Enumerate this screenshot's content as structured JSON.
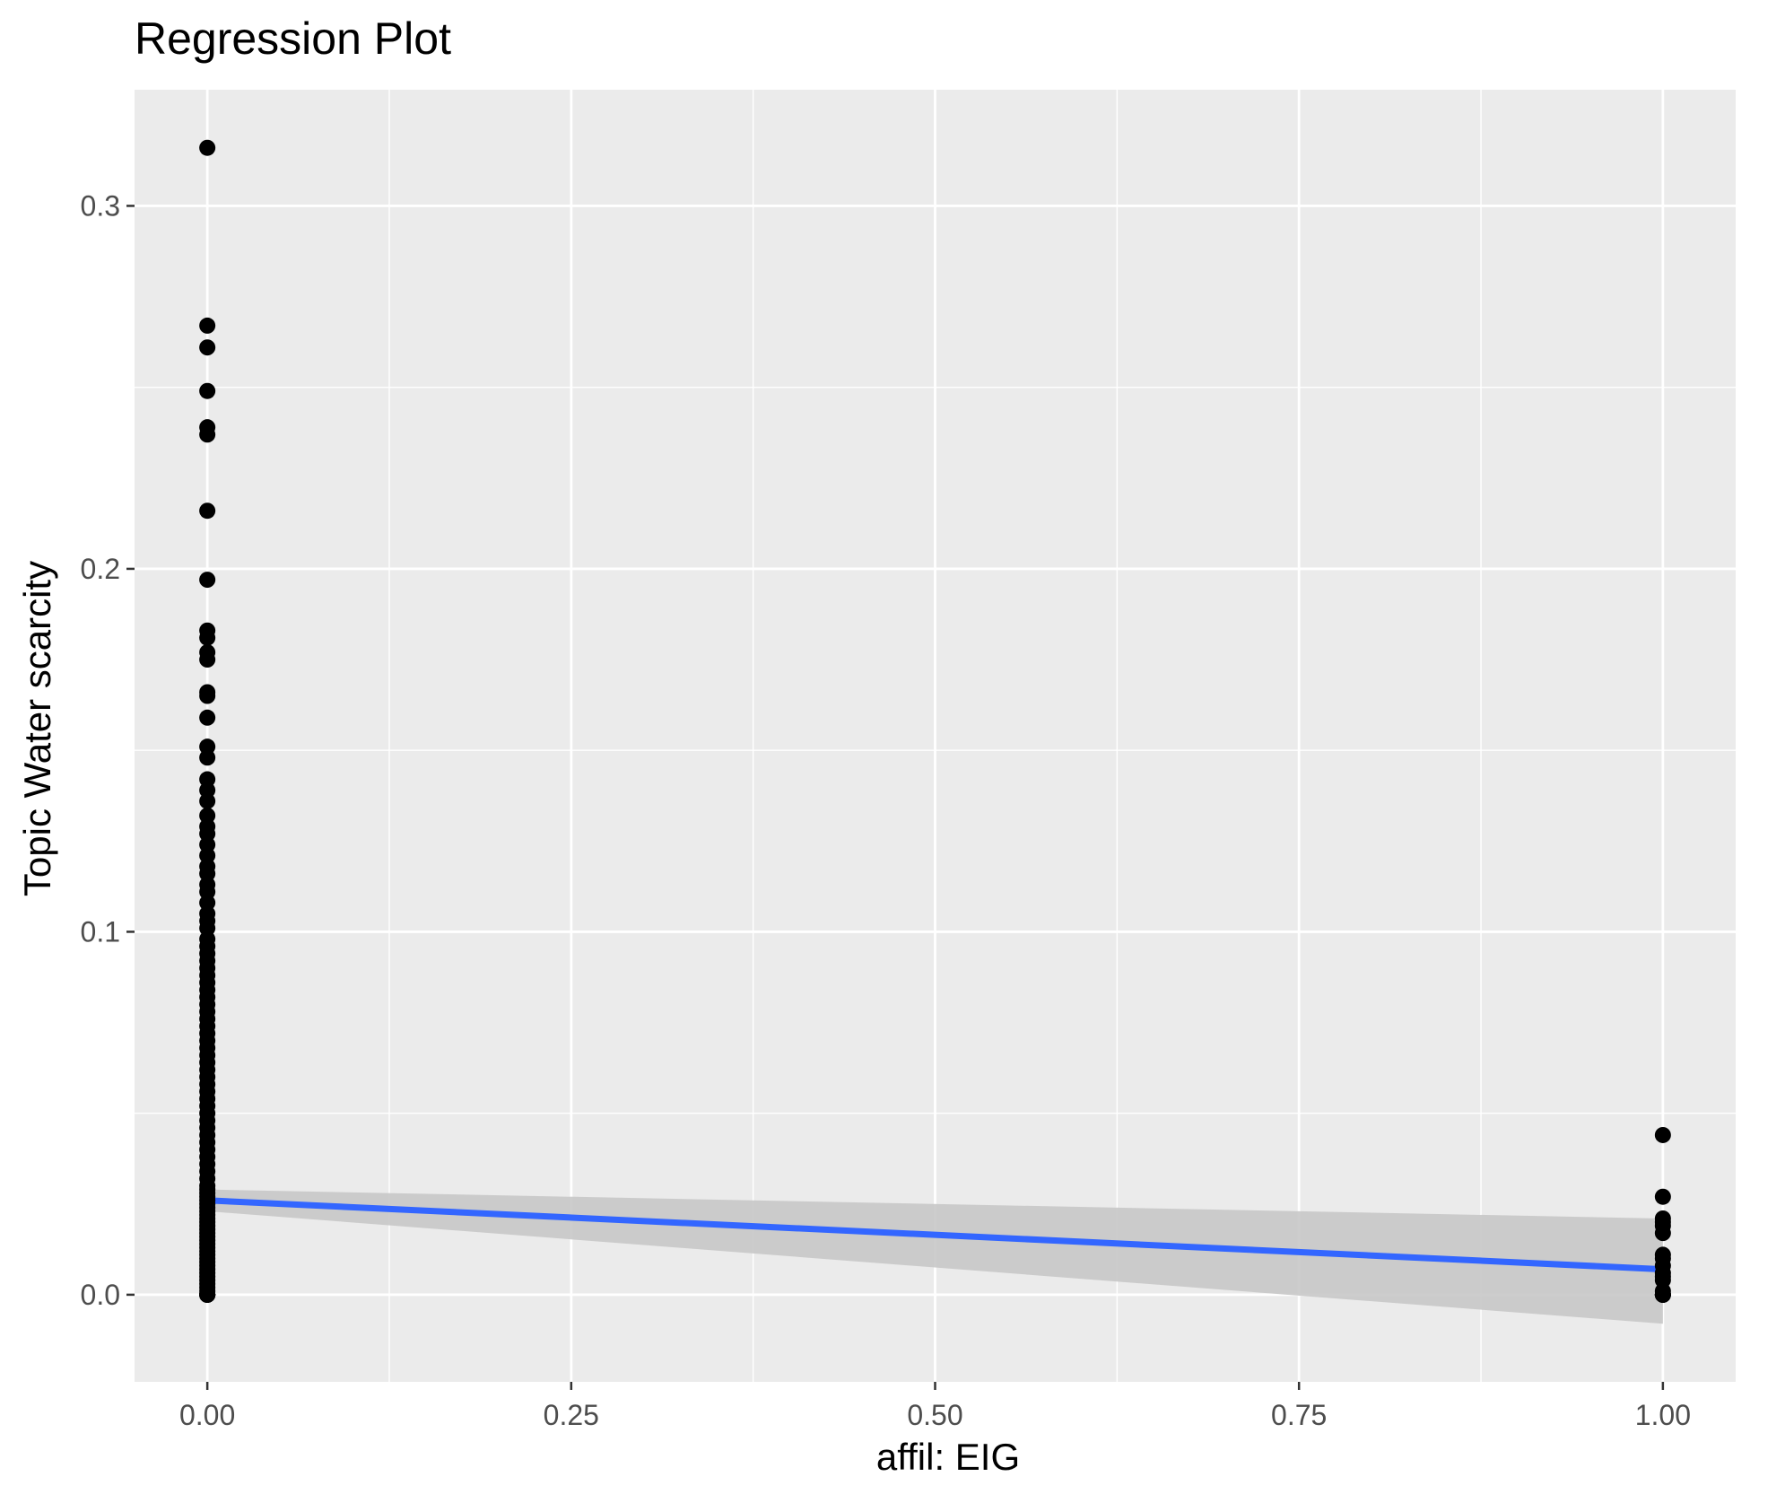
{
  "chart_data": {
    "type": "scatter",
    "title": "Regression Plot",
    "xlabel": "affil: EIG",
    "ylabel": "Topic Water scarcity",
    "xlim": [
      -0.05,
      1.05
    ],
    "ylim": [
      -0.024,
      0.332
    ],
    "x_ticks": [
      {
        "value": 0.0,
        "label": "0.00"
      },
      {
        "value": 0.25,
        "label": "0.25"
      },
      {
        "value": 0.5,
        "label": "0.50"
      },
      {
        "value": 0.75,
        "label": "0.75"
      },
      {
        "value": 1.0,
        "label": "1.00"
      }
    ],
    "y_ticks": [
      {
        "value": 0.0,
        "label": "0.0"
      },
      {
        "value": 0.1,
        "label": "0.1"
      },
      {
        "value": 0.2,
        "label": "0.2"
      },
      {
        "value": 0.3,
        "label": "0.3"
      }
    ],
    "grid": true,
    "legend": "none",
    "colors": {
      "panel": "#ebebeb",
      "grid": "#ffffff",
      "points": "#000000",
      "fit_line": "#3366ff",
      "ribbon": "#c8c8c8",
      "tick_label": "#4d4d4d",
      "tick_mark": "#333333"
    },
    "series": [
      {
        "kind": "points",
        "x": [
          0,
          0,
          0,
          0,
          0,
          0,
          0,
          0,
          0,
          0,
          0,
          0,
          0,
          0,
          0,
          0,
          0,
          0,
          0,
          0,
          0,
          0,
          0,
          0,
          0,
          0,
          0,
          0,
          0,
          0,
          0,
          0,
          0,
          0,
          0,
          0,
          0,
          0,
          0,
          0,
          0,
          0,
          0,
          0,
          0,
          0,
          0,
          0,
          0,
          0,
          0,
          0,
          0,
          0,
          0,
          0,
          0,
          0,
          0,
          0,
          0,
          0,
          0,
          0,
          0,
          0,
          0,
          0,
          0,
          0,
          0,
          0,
          0,
          0,
          0,
          0,
          0,
          0,
          0,
          0,
          0,
          0,
          0,
          0,
          0,
          0,
          0,
          0,
          0,
          0,
          0,
          0,
          0,
          0,
          0,
          0,
          0,
          0,
          0,
          0,
          0,
          0,
          0,
          0,
          0,
          0,
          1,
          1,
          1,
          1,
          1,
          1,
          1,
          1,
          1,
          1,
          1,
          1,
          1,
          1,
          1,
          1,
          1,
          1
        ],
        "y": [
          0.316,
          0.267,
          0.261,
          0.249,
          0.239,
          0.237,
          0.216,
          0.197,
          0.183,
          0.181,
          0.177,
          0.175,
          0.166,
          0.165,
          0.159,
          0.151,
          0.148,
          0.142,
          0.139,
          0.136,
          0.132,
          0.129,
          0.127,
          0.124,
          0.121,
          0.118,
          0.116,
          0.113,
          0.111,
          0.108,
          0.105,
          0.103,
          0.101,
          0.098,
          0.096,
          0.094,
          0.092,
          0.09,
          0.088,
          0.086,
          0.084,
          0.082,
          0.08,
          0.078,
          0.076,
          0.074,
          0.072,
          0.07,
          0.068,
          0.066,
          0.064,
          0.062,
          0.06,
          0.058,
          0.056,
          0.054,
          0.052,
          0.05,
          0.048,
          0.046,
          0.044,
          0.042,
          0.04,
          0.038,
          0.036,
          0.034,
          0.032,
          0.03,
          0.029,
          0.028,
          0.027,
          0.026,
          0.025,
          0.024,
          0.023,
          0.022,
          0.021,
          0.02,
          0.019,
          0.018,
          0.017,
          0.016,
          0.015,
          0.014,
          0.013,
          0.012,
          0.011,
          0.01,
          0.009,
          0.008,
          0.007,
          0.006,
          0.005,
          0.004,
          0.003,
          0.002,
          0.001,
          0.0,
          0.0,
          0.0,
          0.0,
          0.0,
          0.0,
          0.0,
          0.0,
          0.0,
          0.044,
          0.027,
          0.021,
          0.02,
          0.019,
          0.017,
          0.011,
          0.01,
          0.008,
          0.006,
          0.005,
          0.004,
          0.001,
          0.0,
          0.0,
          0.0,
          0.0,
          0.0
        ]
      },
      {
        "kind": "fit",
        "x": [
          0,
          1
        ],
        "y": [
          0.026,
          0.007
        ]
      },
      {
        "kind": "confidence_band",
        "x": [
          0,
          1
        ],
        "lower": [
          0.023,
          -0.008
        ],
        "upper": [
          0.029,
          0.021
        ]
      }
    ]
  }
}
